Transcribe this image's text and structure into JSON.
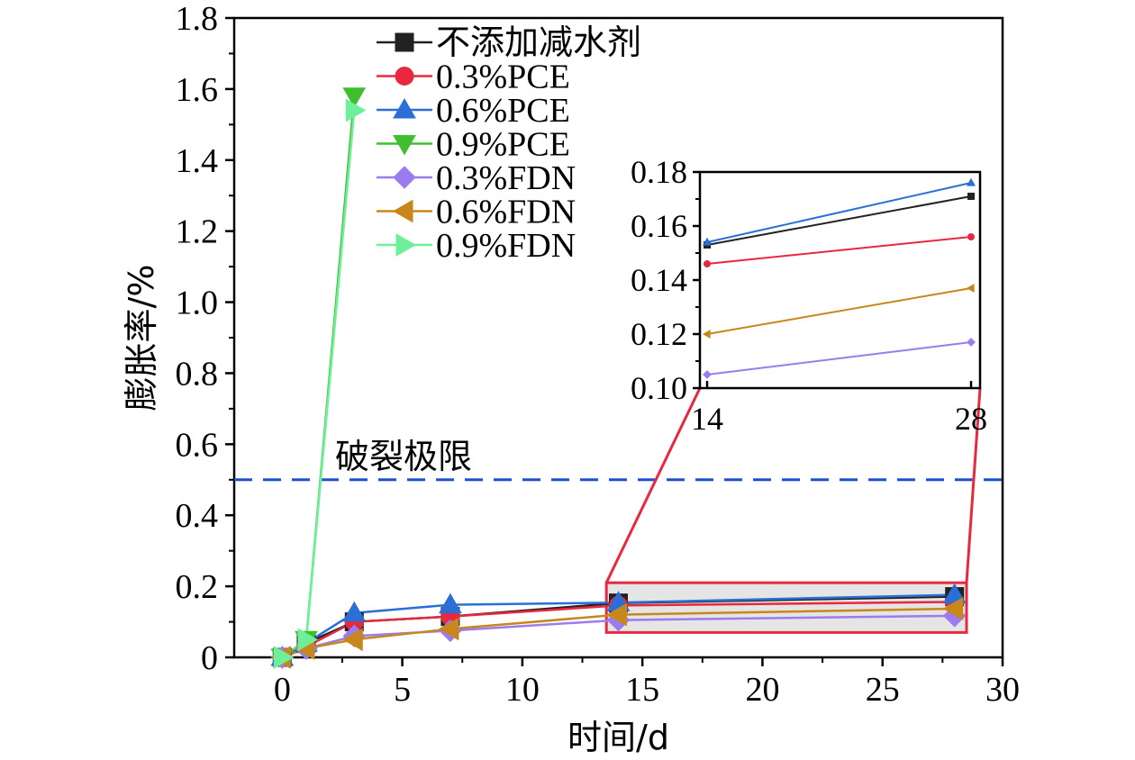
{
  "chart_data": [
    {
      "type": "line",
      "xlabel": "时间/d",
      "ylabel": "膨胀率/%",
      "xlim": [
        -2,
        30
      ],
      "ylim": [
        0,
        1.8
      ],
      "xticks": [
        "0",
        "5",
        "10",
        "15",
        "20",
        "25",
        "30"
      ],
      "yticks": [
        "0",
        "0.2",
        "0.4",
        "0.6",
        "0.8",
        "1.0",
        "1.2",
        "1.4",
        "1.6",
        "1.8"
      ],
      "legend_position": "top-left",
      "grid": false,
      "series": [
        {
          "name": "不添加减水剂",
          "color": "#222222",
          "marker": "square",
          "x": [
            0,
            1,
            3,
            7,
            14,
            28
          ],
          "y": [
            0,
            0.04,
            0.1,
            0.115,
            0.153,
            0.171
          ]
        },
        {
          "name": "0.3%PCE",
          "color": "#e8283f",
          "marker": "circle",
          "x": [
            0,
            1,
            3,
            7,
            14,
            28
          ],
          "y": [
            0,
            0.03,
            0.1,
            0.115,
            0.146,
            0.156
          ]
        },
        {
          "name": "0.6%PCE",
          "color": "#2a6fd6",
          "marker": "triangle-up",
          "x": [
            0,
            1,
            3,
            7,
            14,
            28
          ],
          "y": [
            0,
            0.04,
            0.125,
            0.148,
            0.154,
            0.176
          ]
        },
        {
          "name": "0.9%PCE",
          "color": "#3fbf2f",
          "marker": "triangle-down",
          "x": [
            0,
            1,
            3
          ],
          "y": [
            0,
            0.05,
            1.58
          ]
        },
        {
          "name": "0.3%FDN",
          "color": "#9b7bf0",
          "marker": "diamond",
          "x": [
            0,
            1,
            3,
            7,
            14,
            28
          ],
          "y": [
            0,
            0.025,
            0.06,
            0.075,
            0.105,
            0.117
          ]
        },
        {
          "name": "0.6%FDN",
          "color": "#c8871a",
          "marker": "triangle-left",
          "x": [
            0,
            1,
            3,
            7,
            14,
            28
          ],
          "y": [
            0,
            0.025,
            0.05,
            0.08,
            0.12,
            0.137
          ]
        },
        {
          "name": "0.9%FDN",
          "color": "#6ef09a",
          "marker": "triangle-right",
          "x": [
            0,
            1,
            3
          ],
          "y": [
            0,
            0.05,
            1.54
          ]
        }
      ],
      "annotations": [
        {
          "text": "破裂极限",
          "y": 0.5,
          "line_color": "#1f4fd0",
          "style": "dashed"
        }
      ],
      "zoom_box": {
        "x": [
          13.5,
          28.5
        ],
        "y": [
          0.07,
          0.21
        ],
        "color": "#e8283f"
      }
    },
    {
      "type": "line",
      "title": "",
      "xlim": [
        14,
        28
      ],
      "ylim": [
        0.1,
        0.18
      ],
      "xticks": [
        "14",
        "28"
      ],
      "yticks": [
        "0.10",
        "0.12",
        "0.14",
        "0.16",
        "0.18"
      ],
      "series_ref": "main"
    }
  ]
}
